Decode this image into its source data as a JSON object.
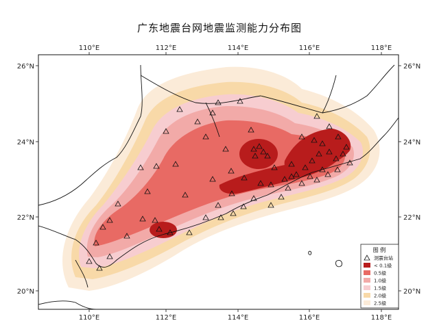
{
  "title": "广东地震台网地震监测能力分布图",
  "axes": {
    "lon_ticks": [
      "110°E",
      "112°E",
      "114°E",
      "116°E",
      "118°E"
    ],
    "lat_ticks": [
      "26°N",
      "24°N",
      "22°N",
      "20°N"
    ],
    "lon_range": [
      108.5,
      118.6
    ],
    "lat_range": [
      19.5,
      26.2
    ]
  },
  "legend": {
    "title": "图 例",
    "placement": "bottom-right",
    "items": [
      {
        "label": "测震台站",
        "type": "station"
      },
      {
        "label": "< 0.1级",
        "color": "#b81c1c"
      },
      {
        "label": "0.5级",
        "color": "#e86a64"
      },
      {
        "label": "1.0级",
        "color": "#f2aaa8"
      },
      {
        "label": "1.5级",
        "color": "#f7cdd0"
      },
      {
        "label": "2.0级",
        "color": "#f8d9a8"
      },
      {
        "label": "2.5级",
        "color": "#fbebd8"
      }
    ]
  },
  "colors": {
    "level_lt_0_1": "#b81c1c",
    "level_0_5": "#e86a64",
    "level_1_0": "#f2aaa8",
    "level_1_5": "#f7cdd0",
    "level_2_0": "#f8d9a8",
    "level_2_5": "#fbebd8"
  }
}
